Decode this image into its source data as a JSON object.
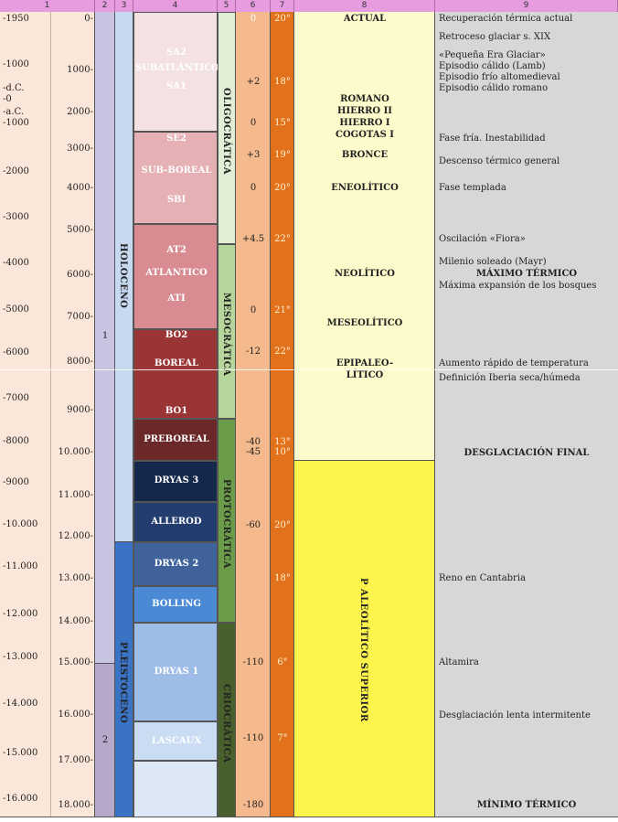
{
  "headers": [
    "1",
    "2",
    "3",
    "4",
    "5",
    "6",
    "7",
    "8",
    "9"
  ],
  "col1_ticks": [
    "-1950",
    "-1000",
    "-d.C.",
    "-0",
    "-a.C.",
    "-1000",
    "-2000",
    "-3000",
    "-4000",
    "-5000",
    "-6000",
    "-7000",
    "-8000",
    "-9000",
    "-10.000",
    "-11.000",
    "-12.000",
    "-13.000",
    "-14.000",
    "-15.000",
    "-16.000"
  ],
  "col1b_ticks": [
    "0-",
    "1000-",
    "2000-",
    "3000-",
    "4000-",
    "5000-",
    "6000-",
    "7000-",
    "8000-",
    "9000-",
    "10.000-",
    "11.000-",
    "12.000-",
    "13.000-",
    "14.000-",
    "15.000-",
    "16.000-",
    "17.000-",
    "18.000-"
  ],
  "col2": {
    "label_1": "1",
    "label_2": "2"
  },
  "col3": {
    "holoceno": "HOLOCENO",
    "pleistoceno": "PLEISTOCENO"
  },
  "periods": {
    "sa2": "SA2",
    "subatlantico": "SUBATLÁNTICO",
    "sa1": "SA1",
    "se2": "SE2",
    "subboreal": "SUB-BOREAL",
    "sb1": "SBI",
    "at2": "AT2",
    "atlantico": "ATLANTICO",
    "at1": "ATI",
    "bo2": "BO2",
    "boreal": "BOREAL",
    "bo1": "BO1",
    "preboreal": "PREBOREAL",
    "dryas3": "DRYAS 3",
    "allerod": "ALLEROD",
    "dryas2": "DRYAS 2",
    "bolling": "BOLLING",
    "dryas1": "DRYAS 1",
    "lascaux": "LASCAUX"
  },
  "col5": {
    "oligocratica": "OLIGOCRÁTICA",
    "mesocratica": "MESOCRÁTICA",
    "protocratica": "PROTOCRÁTICA",
    "criocratica": "CRIOCRÁTICA"
  },
  "col6": [
    "0",
    "+2",
    "0",
    "+3",
    "0",
    "+4.5",
    "0",
    "-12",
    "-40",
    "-45",
    "-60",
    "-110",
    "-110",
    "-180"
  ],
  "col7": [
    "20°",
    "18°",
    "15°",
    "19°",
    "20°",
    "22°",
    "21°",
    "22°",
    "13°",
    "10°",
    "20°",
    "18°",
    "6°",
    "7°"
  ],
  "col8": {
    "actual": "ACTUAL",
    "romano": "ROMANO",
    "hierro2": "HIERRO II",
    "hierro1": "HIERRO I",
    "cogotas": "COGOTAS I",
    "bronce": "BRONCE",
    "eneolitico": "ENEOLÍTICO",
    "neolitico": "NEOLÍTICO",
    "meseolitico": "MESEOLÍTICO",
    "epipaleo": "EPIPALEO-",
    "litico": "LÍTICO",
    "paleolitico": "P ALEOLÍTICO SUPERIOR"
  },
  "col9": {
    "rec": "Recuperación térmica actual",
    "retroceso": "Retroceso glaciar s. XIX",
    "peg": "«Pequeña Era Glaciar»",
    "lamb": "Episodio cálido (Lamb)",
    "frio": "Episodio frío altomedieval",
    "calido": "Episodio cálido romano",
    "fase_fria": "Fase fría. Inestabilidad",
    "descenso": "Descenso térmico general",
    "templada": "Fase templada",
    "fiora": "Oscilación «Fiora»",
    "mayr": "Milenio soleado (Mayr)",
    "maximo": "MÁXIMO TÉRMICO",
    "bosques": "Máxima expansión de los bosques",
    "aumento": "Aumento rápido de temperatura",
    "iberia": "Definición Iberia seca/húmeda",
    "desglaciacion": "DESGLACIACIÓN FINAL",
    "reno": "Reno en Cantabria",
    "altamira": "Altamira",
    "lenta": "Desglaciación lenta intermitente",
    "minimo": "MÍNIMO TÉRMICO"
  }
}
